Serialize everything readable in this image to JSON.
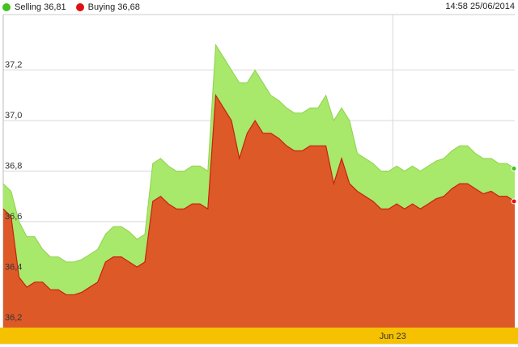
{
  "header": {
    "timestamp": "14:58 25/06/2014"
  },
  "legend": [
    {
      "name": "Selling 36,81",
      "color": "#44c020"
    },
    {
      "name": "Buying 36,68",
      "color": "#e01010"
    }
  ],
  "colors": {
    "selling_fill": "#a8e86a",
    "buying_fill": "#dd5a28",
    "buying_line": "#c82010",
    "x_axis_band": "#f5c100",
    "grid": "#d8d8d8"
  },
  "chart_data": {
    "type": "area",
    "title": "",
    "xlabel": "",
    "ylabel": "",
    "ylim": [
      36.18,
      37.42
    ],
    "y_ticks": [
      36.2,
      36.4,
      36.6,
      36.8,
      37.0,
      37.2
    ],
    "y_tick_labels": [
      "36,2",
      "36,4",
      "36,6",
      "36,8",
      "37,0",
      "37,2"
    ],
    "x_ticks": [
      {
        "index": 49.5,
        "label": "Jun 23"
      }
    ],
    "grid": true,
    "legend_position": "top-left",
    "series": [
      {
        "name": "Selling 36,81",
        "values": [
          36.75,
          36.72,
          36.6,
          36.54,
          36.54,
          36.49,
          36.46,
          36.46,
          36.44,
          36.44,
          36.45,
          36.47,
          36.49,
          36.55,
          36.58,
          36.58,
          36.56,
          36.53,
          36.55,
          36.83,
          36.85,
          36.82,
          36.8,
          36.8,
          36.82,
          36.82,
          36.8,
          37.3,
          37.25,
          37.2,
          37.15,
          37.15,
          37.2,
          37.15,
          37.1,
          37.08,
          37.05,
          37.03,
          37.03,
          37.05,
          37.05,
          37.1,
          37.0,
          37.05,
          37.0,
          36.87,
          36.85,
          36.83,
          36.8,
          36.8,
          36.82,
          36.8,
          36.82,
          36.8,
          36.82,
          36.84,
          36.85,
          36.88,
          36.9,
          36.9,
          36.87,
          36.85,
          36.85,
          36.83,
          36.83,
          36.81
        ]
      },
      {
        "name": "Buying 36,68",
        "values": [
          36.65,
          36.62,
          36.38,
          36.34,
          36.36,
          36.36,
          36.33,
          36.33,
          36.31,
          36.31,
          36.32,
          36.34,
          36.36,
          36.44,
          36.46,
          36.46,
          36.44,
          36.42,
          36.44,
          36.68,
          36.7,
          36.67,
          36.65,
          36.65,
          36.67,
          36.67,
          36.65,
          37.1,
          37.05,
          37.0,
          36.85,
          36.95,
          37.0,
          36.95,
          36.95,
          36.93,
          36.9,
          36.88,
          36.88,
          36.9,
          36.9,
          36.9,
          36.75,
          36.85,
          36.75,
          36.72,
          36.7,
          36.68,
          36.65,
          36.65,
          36.67,
          36.65,
          36.67,
          36.65,
          36.67,
          36.69,
          36.7,
          36.73,
          36.75,
          36.75,
          36.73,
          36.71,
          36.72,
          36.7,
          36.7,
          36.68
        ]
      }
    ]
  }
}
